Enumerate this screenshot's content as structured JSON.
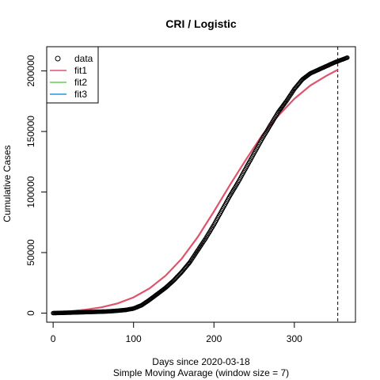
{
  "chart_data": {
    "type": "scatter",
    "title": "CRI / Logistic",
    "xlabel": "Days since 2020-03-18",
    "xlabel2": "Simple Moving Avarage (window size = 7)",
    "ylabel": "Cumulative Cases",
    "xlim": [
      -8,
      376
    ],
    "ylim": [
      -7500,
      220000
    ],
    "xticks": [
      0,
      100,
      200,
      300
    ],
    "yticks": [
      0,
      50000,
      100000,
      150000,
      200000
    ],
    "vline": {
      "x": 354,
      "style": "dashed"
    },
    "legend": {
      "placement": "top-left",
      "entries": [
        {
          "label": "data",
          "symbol": "circle",
          "color": "#000000"
        },
        {
          "label": "fit1",
          "symbol": "line",
          "color": "#DF536B"
        },
        {
          "label": "fit2",
          "symbol": "line",
          "color": "#61D04F"
        },
        {
          "label": "fit3",
          "symbol": "line",
          "color": "#2297E6"
        }
      ]
    },
    "data_points": {
      "x": [
        0,
        10,
        20,
        30,
        40,
        50,
        60,
        70,
        80,
        90,
        100,
        110,
        120,
        130,
        140,
        150,
        160,
        170,
        180,
        190,
        200,
        210,
        220,
        230,
        240,
        250,
        260,
        270,
        280,
        290,
        300,
        310,
        320,
        330,
        340,
        350,
        360,
        366
      ],
      "y": [
        50,
        200,
        400,
        600,
        800,
        1000,
        1200,
        1500,
        2000,
        2600,
        3800,
        6500,
        11000,
        16000,
        21000,
        27000,
        34000,
        42000,
        52000,
        62000,
        73000,
        85000,
        97000,
        108000,
        120000,
        132000,
        144000,
        155000,
        166000,
        175000,
        185000,
        193000,
        198000,
        201000,
        204000,
        207000,
        209500,
        211000
      ]
    },
    "series": [
      {
        "name": "fit1",
        "color": "#DF536B",
        "x": [
          0,
          20,
          40,
          60,
          80,
          100,
          120,
          140,
          160,
          180,
          200,
          220,
          240,
          260,
          280,
          300,
          320,
          340,
          354
        ],
        "y": [
          800,
          1500,
          2800,
          4800,
          8000,
          13000,
          20500,
          31000,
          45000,
          63000,
          84000,
          106000,
          127000,
          147000,
          163000,
          177000,
          188000,
          196000,
          201000
        ]
      },
      {
        "name": "fit2",
        "color": "#61D04F",
        "x": [],
        "y": []
      },
      {
        "name": "fit3",
        "color": "#2297E6",
        "x": [],
        "y": []
      }
    ]
  }
}
